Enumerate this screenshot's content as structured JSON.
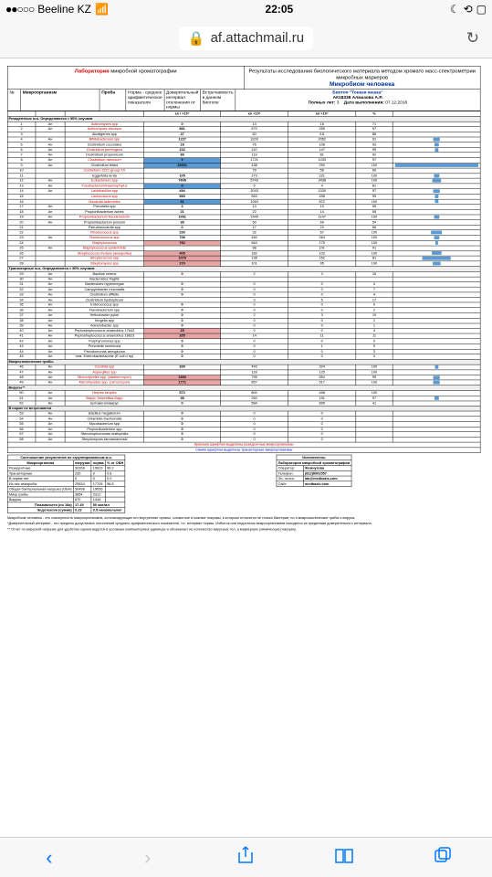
{
  "status": {
    "signal": "●●○○○",
    "carrier": "Beeline KZ",
    "wifi": "📶",
    "time": "22:05",
    "moon": "☾",
    "orientation": "⟲",
    "battery": "▢"
  },
  "nav": {
    "lock": "🔒",
    "url": "af.attachmail.ru",
    "refresh": "↻"
  },
  "doc_header": {
    "lab_label_red": "Лаборатория",
    "lab_label": " микробной хроматографии",
    "result_label": "Результаты исследования биологического материала методом хромато масс-спектрометрии микробных маркеров",
    "microbiome": "Микробиом человека",
    "biotope_label": "Биотоп \"Тонкая кишка\"",
    "sample_id": "АК18338 Алмазова А.Р.",
    "age_label": "Полных лет:",
    "age": "3",
    "date_label": "Дата выполнения:",
    "date": "07.12.2018"
  },
  "columns": {
    "num": "№",
    "org": "Микроорганизм",
    "sample": "Проба",
    "norm": "Норма - среднее арифметическое показателя",
    "interval": "Доверительный интервал отклонения от нормы",
    "freq": "Встречаемость в данном биотопе",
    "pct": "%",
    "unit1": "кл / ×10⁵",
    "unit2": "кл ×10⁵",
    "unit3": "кл ×10⁵"
  },
  "sections": {
    "s1": "Резидентные м.о. Определяются > 50% случаев",
    "s2": "Транзиторные м.о. Определяются < 50% случаев",
    "s3": "Микроскопические грибы",
    "s4": "Вирусы**",
    "s5": "В норме не встречаются"
  },
  "rows": [
    {
      "n": 1,
      "g": "Ан",
      "org": "Actinomyces spp",
      "red": 1,
      "p": "0",
      "pn": "14",
      "ni": "16",
      "pc": "71"
    },
    {
      "n": 2,
      "g": "Ан",
      "org": "Actinomyces viscosus",
      "red": 1,
      "p": "661",
      "pn": "670",
      "ni": "259",
      "pc": "97"
    },
    {
      "n": 3,
      "g": "",
      "org": "Alcaligenes spp",
      "red": 0,
      "p": "47",
      "pn": "60",
      "ni": "0.8",
      "pc": "86"
    },
    {
      "n": 4,
      "g": "Ан",
      "org": "Bifidobacterium spp",
      "red": 1,
      "p": "1227",
      "pn": "3203",
      "ni": "2052",
      "pc": "91",
      "bar": 15
    },
    {
      "n": 5,
      "g": "Ан",
      "org": "Clostridium coccoides",
      "red": 0,
      "p": "16",
      "pn": "76",
      "ni": "108",
      "pc": "93",
      "bar": 10
    },
    {
      "n": 6,
      "g": "Ан",
      "org": "Clostridium perfringens",
      "red": 1,
      "p": "132",
      "pn": "110",
      "ni": "147",
      "pc": "99",
      "bar": 8
    },
    {
      "n": 7,
      "g": "Ан",
      "org": "Clostridium propionicum",
      "red": 0,
      "p": "89",
      "pn": "119",
      "ni": "81",
      "pc": "92"
    },
    {
      "n": 8,
      "g": "Ан",
      "org": "Clostridium ramosum",
      "red": 1,
      "p": "0",
      "hl": "blue",
      "pn": "1721",
      "ni": "1033",
      "pc": "97"
    },
    {
      "n": 9,
      "g": "Ан",
      "org": "Clostridium tetani",
      "red": 0,
      "p": "19401",
      "hl": "blue",
      "pn": "438",
      "ni": "290",
      "pc": "100",
      "bar": 190
    },
    {
      "n": 10,
      "g": "",
      "org": "Corineform CDC-group XX",
      "red": 1,
      "p": "",
      "pn": "79",
      "ni": "56",
      "pc": "69"
    },
    {
      "n": 11,
      "g": "",
      "org": "Eggertella lenta",
      "red": 0,
      "p": "105",
      "pn": "273",
      "ni": "221",
      "pc": "100",
      "bar": 12
    },
    {
      "n": 12,
      "g": "Ан",
      "org": "Eubacterium spp",
      "red": 1,
      "p": "7606",
      "pn": "5743",
      "ni": "3438",
      "pc": "100",
      "bar": 20
    },
    {
      "n": 13,
      "g": "Ан",
      "org": "Fusobacterium/Haemophylus",
      "red": 1,
      "p": "0",
      "hl": "blue",
      "pn": "5",
      "ni": "4",
      "pc": "81"
    },
    {
      "n": 14,
      "g": "Ан",
      "org": "Lactobacillus spp",
      "red": 1,
      "p": "494",
      "pn": "2043",
      "ni": "1030",
      "pc": "97",
      "bar": 15
    },
    {
      "n": 15,
      "g": "",
      "org": "Lactococcus spp",
      "red": 1,
      "p": "565",
      "pn": "563",
      "ni": "498",
      "pc": "99",
      "bar": 8
    },
    {
      "n": 16,
      "g": "",
      "org": "Nocardia asteroides",
      "red": 1,
      "p": "61",
      "hl": "blue",
      "pn": "1063",
      "ni": "872",
      "pc": "100",
      "bar": 8
    },
    {
      "n": 17,
      "g": "Ан",
      "org": "Prevotella spp",
      "red": 0,
      "p": "0",
      "pn": "13",
      "ni": "10",
      "pc": "55"
    },
    {
      "n": 18,
      "g": "Ан",
      "org": "Propionibacterium acnes",
      "red": 0,
      "p": "21",
      "pn": "22",
      "ni": "14",
      "pc": "55"
    },
    {
      "n": 19,
      "g": "Ан",
      "org": "Propionibacterium freudenreichii",
      "red": 1,
      "p": "1091",
      "pn": "1545",
      "ni": "1147",
      "pc": "100",
      "bar": 12
    },
    {
      "n": 20,
      "g": "Ан",
      "org": "Propionibacterium jensenii",
      "red": 0,
      "p": "36",
      "pn": "50",
      "ni": "69",
      "pc": "54"
    },
    {
      "n": 21,
      "g": "",
      "org": "Pseudonocardia spp",
      "red": 0,
      "p": "0",
      "pn": "17",
      "ni": "24",
      "pc": "66"
    },
    {
      "n": 22,
      "g": "",
      "org": "Rhodococcus spp",
      "red": 1,
      "p": "230",
      "pn": "32",
      "ni": "67",
      "pc": "100",
      "bar": 25
    },
    {
      "n": 23,
      "g": "Ан",
      "org": "Ruminococcus spp",
      "red": 1,
      "p": "706",
      "pn": "460",
      "ni": "264",
      "pc": "100",
      "bar": 12
    },
    {
      "n": 24,
      "g": "",
      "org": "Staphylococcus",
      "red": 1,
      "p": "782",
      "hl": "pink",
      "pn": "664",
      "ni": "175",
      "pc": "100",
      "bar": 6
    },
    {
      "n": 25,
      "g": "Ан",
      "org": "Staphylococcus epidermidis",
      "red": 1,
      "p": "",
      "pn": "98",
      "ni": "101",
      "pc": "91"
    },
    {
      "n": 26,
      "g": "",
      "org": "Streptococcus mutans (анаэробы)",
      "red": 1,
      "p": "405",
      "hl": "pink",
      "pn": "182",
      "ni": "103",
      "pc": "100",
      "bar": 22
    },
    {
      "n": 27,
      "g": "",
      "org": "Streptococcus spp",
      "red": 1,
      "p": "1076",
      "hl": "pink",
      "pn": "138",
      "ni": "152",
      "pc": "81",
      "bar": 65
    },
    {
      "n": 28,
      "g": "",
      "org": "Streptomyces spp",
      "red": 1,
      "p": "270",
      "hl": "pink",
      "pn": "101",
      "ni": "95",
      "pc": "100",
      "bar": 18
    }
  ],
  "rows2": [
    {
      "n": 29,
      "org": "Bacillus cereus",
      "p": "0",
      "a": "2",
      "b": "3",
      "c": "15"
    },
    {
      "n": 30,
      "org": "Bacteroides fragilis",
      "p": "",
      "a": "",
      "b": "",
      "c": ""
    },
    {
      "n": 31,
      "org": "Bacteroides hypermegas",
      "p": "0",
      "a": "0",
      "b": "0",
      "c": "4"
    },
    {
      "n": 32,
      "org": "Campylobacter mucosalis",
      "p": "0",
      "a": "0",
      "b": "0",
      "c": "7"
    },
    {
      "n": 33,
      "org": "Clostridium difficile",
      "p": "0",
      "a": "0",
      "b": "0",
      "c": "4"
    },
    {
      "n": 34,
      "org": "Clostridium hystolyticum",
      "p": "",
      "a": "3",
      "b": "5",
      "c": "17"
    },
    {
      "n": 35,
      "org": "Enterococcus spp",
      "p": "0",
      "a": "0",
      "b": "0",
      "c": "0"
    },
    {
      "n": 36,
      "org": "Flavobacterium spp",
      "p": "0",
      "a": "0",
      "b": "0",
      "c": "2"
    },
    {
      "n": 37,
      "org": "Helicobacter pylori",
      "p": "0",
      "a": "2",
      "b": "3",
      "c": "19"
    },
    {
      "n": 38,
      "org": "Kingella spp",
      "p": "0",
      "a": "0",
      "b": "0",
      "c": "1"
    },
    {
      "n": 39,
      "org": "Acinetobacter spp",
      "p": "0",
      "a": "0",
      "b": "0",
      "c": "1"
    },
    {
      "n": 40,
      "org": "Peptostreptococcus anaerobius 17642",
      "p": "25",
      "hl": "pink",
      "a": "0",
      "b": "0",
      "c": "4"
    },
    {
      "n": 41,
      "org": "Peptostreptococcus anaerobius 18623",
      "p": "205",
      "hl": "pink",
      "a": "14",
      "b": "11",
      "c": "11"
    },
    {
      "n": 42,
      "org": "Porphyromonas spp",
      "p": "0",
      "a": "0",
      "b": "0",
      "c": "0"
    },
    {
      "n": 43,
      "org": "Prevotella ruminicola",
      "p": "0",
      "a": "0",
      "b": "1",
      "c": "9"
    },
    {
      "n": 44,
      "org": "Pseudomonas aeruginosa",
      "p": "0",
      "a": "0",
      "b": "0",
      "c": "3"
    },
    {
      "n": 45,
      "org": "сем. Enterobacteriaceae (E.coli и пр)",
      "p": "0",
      "a": "0",
      "b": "0",
      "c": "0"
    }
  ],
  "rows3": [
    {
      "n": 46,
      "org": "Candida spp",
      "red": 1,
      "p": "399",
      "a": "493",
      "b": "324",
      "c": "100",
      "bar": 8
    },
    {
      "n": 47,
      "org": "Aspergillus spp",
      "red": 1,
      "p": "",
      "a": "118",
      "b": "125",
      "c": "100"
    },
    {
      "n": 48,
      "org": "Micromycetes spp. (кампестерол)",
      "red": 1,
      "p": "1683",
      "hl": "pink",
      "a": "795",
      "b": "554",
      "c": "99",
      "bar": 15
    },
    {
      "n": 49,
      "org": "Micromycetes spp. (ситостерол)",
      "red": 1,
      "p": "1771",
      "hl": "pink",
      "a": "857",
      "b": "517",
      "c": "100",
      "bar": 15
    }
  ],
  "rows4": [
    {
      "n": 50,
      "org": "Herpes simplex",
      "red": 1,
      "p": "572",
      "a": "800",
      "b": "498",
      "c": "100"
    },
    {
      "n": 51,
      "org": "Вирус Эпштейна-Барр",
      "red": 1,
      "p": "98",
      "a": "260",
      "b": "191",
      "c": "97",
      "bar": 10
    },
    {
      "n": 52,
      "org": "Цитомегаловирус",
      "p": "0",
      "a": "584",
      "b": "895",
      "c": "41"
    }
  ],
  "rows5": [
    {
      "n": 53,
      "org": "Bacillus megaterium",
      "p": "0",
      "a": "0",
      "b": "0"
    },
    {
      "n": 54,
      "org": "Chlamidia trachomatis",
      "p": "0",
      "a": "0",
      "b": "0"
    },
    {
      "n": 55,
      "org": "Mycobacterium spp",
      "p": "0",
      "a": "0",
      "b": "0"
    },
    {
      "n": 56,
      "org": "Propionibacterium spp",
      "p": "0",
      "a": "0",
      "b": "0"
    },
    {
      "n": 57,
      "org": "Stenotrophomonas maltophilia",
      "p": "0",
      "a": "0",
      "b": "0"
    },
    {
      "n": 58,
      "org": "Streptomyces farmamarensis",
      "p": "0",
      "a": "0",
      "b": "0"
    }
  ],
  "legend_red": "Красным шрифтом выделены резидентные микроорганизмы",
  "legend_blue": "Синим шрифтом выделены транзиторные микроорганизмы",
  "legend_sample": "Проба",
  "legend_norm": "Норма",
  "summary": {
    "title": "Соотношение результатов по сгруппированным м.о.",
    "cols": [
      "Микроорганизм",
      "нагрузка",
      "норма",
      "% от ОБН"
    ],
    "rows": [
      [
        "Резидентные",
        "30268",
        "19623",
        "99.2"
      ],
      [
        "Транзиторные",
        "230",
        "0",
        "0.8"
      ],
      [
        "В норме нет",
        "0",
        "0",
        "0.0"
      ],
      [
        "Из них анаэробы",
        "29534",
        "17705",
        "96.8"
      ],
      [
        "Общая бактериальная нагрузка (ОБН)",
        "30498",
        "19656",
        ""
      ],
      [
        "Микр грибы",
        "3854",
        "2312",
        ""
      ],
      [
        "Вирусы",
        "670",
        "1444",
        ""
      ]
    ],
    "plasma_label": "Плазмалоген (по 16а)",
    "plasma_val": "17.49",
    "plasma_unit": "50 мкг/мл",
    "endo_label": "Эндотоксин (сумма)",
    "endo_val": "0.23",
    "endo_unit": "0.5 наномоль/мл"
  },
  "contact": {
    "title": "Исполнитель",
    "lab": "Лаборатория микробной хроматографии",
    "op_label": "Оператор:",
    "op": "Жемчугова",
    "tel_label": "Телефон:",
    "tel": "(812)6002557",
    "email_label": "Эл. почта:",
    "email": "lab@medbazis.com",
    "site_label": "Сайт:",
    "site": "medbazis.com"
  },
  "footnotes": {
    "f1": "Микробиом человека - это совокупность микроорганизмов, колонизирующих его внутренние органы, слизистые и кожные покровы, к которым относятся не только бактерии, но и микроскопические грибы и вирусы.",
    "f2": "*Доверительный интервал - это пределы допустимых отклонений среднего арифметического показателя, т.е. интервал нормы. Избыток или недостаток микроорганизмов находится за пределами доверительного интервала.",
    "f3": "** Отчет по вирусной нагрузке для удобства оценки ведется в условных компьютерных единицах и обозначает не количество вирусных тел, а маркерную (химическую) нагрузку."
  },
  "toolbar": {
    "back": "‹",
    "fwd": "›",
    "share": "⎋",
    "books": "▭",
    "tabs": "▢"
  }
}
